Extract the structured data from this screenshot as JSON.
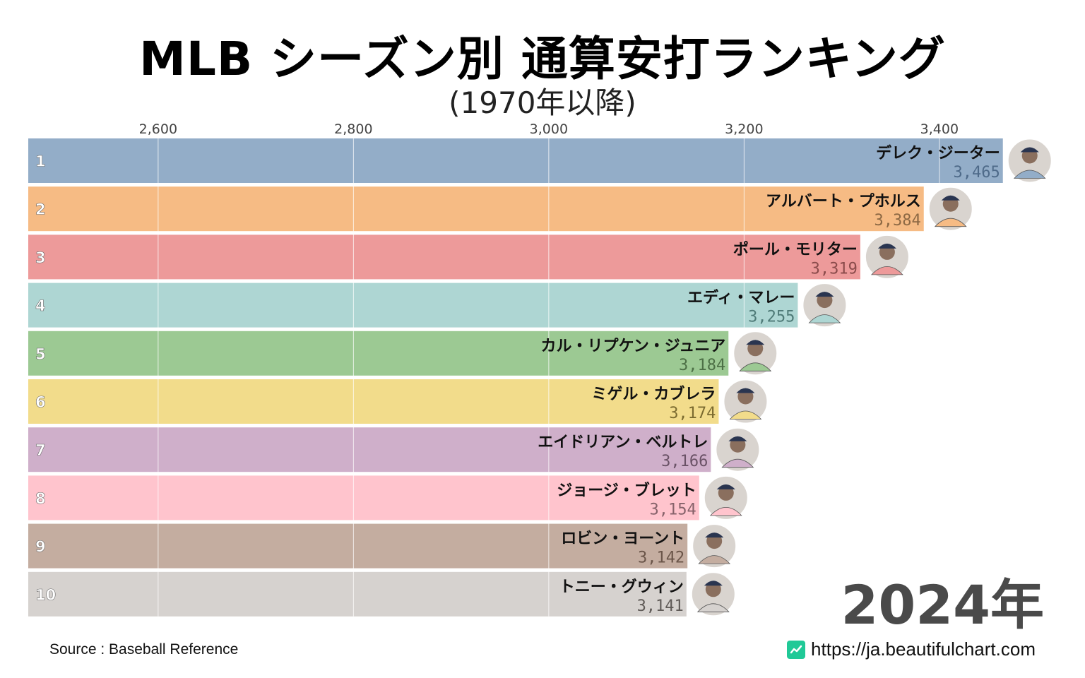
{
  "title": "MLB シーズン別 通算安打ランキング",
  "subtitle": "(1970年以降)",
  "year_label": "2024年",
  "source": "Source : Baseball Reference",
  "site_url": "https://ja.beautifulchart.com",
  "site_icon": "chart-line-icon",
  "chart_data": {
    "type": "bar",
    "orientation": "horizontal",
    "title": "MLB シーズン別 通算安打ランキング",
    "subtitle": "(1970年以降)",
    "xlim": [
      2467,
      3600
    ],
    "x_ticks": [
      2600,
      2800,
      3000,
      3200,
      3400
    ],
    "x_tick_labels": [
      "2,600",
      "2,800",
      "3,000",
      "3,200",
      "3,400"
    ],
    "grid": true,
    "bars": [
      {
        "rank": "1",
        "name": "デレク・ジーター",
        "value": 3465,
        "value_label": "3,465",
        "color": "#93adc8",
        "label_color": "#4e6a89"
      },
      {
        "rank": "2",
        "name": "アルバート・プホルス",
        "value": 3384,
        "value_label": "3,384",
        "color": "#f6bb84",
        "label_color": "#8c6843"
      },
      {
        "rank": "3",
        "name": "ポール・モリター",
        "value": 3319,
        "value_label": "3,319",
        "color": "#ed9a9a",
        "label_color": "#8a4b4b"
      },
      {
        "rank": "4",
        "name": "エディ・マレー",
        "value": 3255,
        "value_label": "3,255",
        "color": "#aed6d3",
        "label_color": "#4e7a77"
      },
      {
        "rank": "5",
        "name": "カル・リプケン・ジュニア",
        "value": 3184,
        "value_label": "3,184",
        "color": "#9cc993",
        "label_color": "#4d7046"
      },
      {
        "rank": "6",
        "name": "ミゲル・カブレラ",
        "value": 3174,
        "value_label": "3,174",
        "color": "#f2dc8b",
        "label_color": "#7b6b30"
      },
      {
        "rank": "7",
        "name": "エイドリアン・ベルトレ",
        "value": 3166,
        "value_label": "3,166",
        "color": "#cfafca",
        "label_color": "#6a5266"
      },
      {
        "rank": "8",
        "name": "ジョージ・ブレット",
        "value": 3154,
        "value_label": "3,154",
        "color": "#ffc4cd",
        "label_color": "#86626a"
      },
      {
        "rank": "9",
        "name": "ロビン・ヨーント",
        "value": 3142,
        "value_label": "3,142",
        "color": "#c4ada0",
        "label_color": "#6a5549"
      },
      {
        "rank": "10",
        "name": "トニー・グウィン",
        "value": 3141,
        "value_label": "3,141",
        "color": "#d6d2cf",
        "label_color": "#5f5a57"
      }
    ]
  }
}
